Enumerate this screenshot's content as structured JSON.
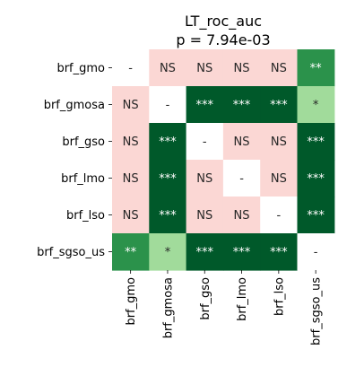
{
  "chart_data": {
    "type": "heatmap",
    "title": "LT_roc_auc",
    "subtitle": "p = 7.94e-03",
    "rows": [
      "brf_gmo",
      "brf_gmosa",
      "brf_gso",
      "brf_lmo",
      "brf_lso",
      "brf_sgso_us"
    ],
    "columns": [
      "brf_gmo",
      "brf_gmosa",
      "brf_gso",
      "brf_lmo",
      "brf_lso",
      "brf_sgso_us"
    ],
    "cells": [
      [
        "-",
        "NS",
        "NS",
        "NS",
        "NS",
        "**"
      ],
      [
        "NS",
        "-",
        "***",
        "***",
        "***",
        "*"
      ],
      [
        "NS",
        "***",
        "-",
        "NS",
        "NS",
        "***"
      ],
      [
        "NS",
        "***",
        "NS",
        "-",
        "NS",
        "***"
      ],
      [
        "NS",
        "***",
        "NS",
        "NS",
        "-",
        "***"
      ],
      [
        "**",
        "*",
        "***",
        "***",
        "***",
        "-"
      ]
    ],
    "colors": {
      "-": "#ffffff",
      "NS": "#fbd7d4",
      "*": "#a1db9b",
      "**": "#2b924b",
      "***": "#00592a"
    },
    "text_colors": {
      "-": "#262626",
      "NS": "#262626",
      "*": "#262626",
      "**": "#ffffff",
      "***": "#ffffff"
    }
  }
}
